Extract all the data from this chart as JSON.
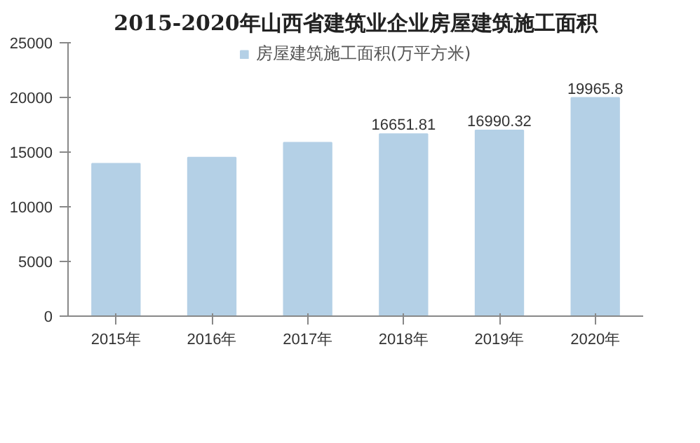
{
  "chart_data": {
    "type": "bar",
    "title": "2015-2020年山西省建筑业企业房屋建筑施工面积",
    "categories": [
      "2015年",
      "2016年",
      "2017年",
      "2018年",
      "2019年",
      "2020年"
    ],
    "series": [
      {
        "name": "房屋建筑施工面积(万平方米)",
        "color": "#b4d0e6",
        "values": [
          13940,
          14500,
          15860,
          16651.81,
          16990.32,
          19965.8
        ],
        "value_labels": [
          null,
          null,
          null,
          "16651.81",
          "16990.32",
          "19965.8"
        ]
      }
    ],
    "ylim": [
      0,
      25000
    ],
    "yticks": [
      0,
      5000,
      10000,
      15000,
      20000,
      25000
    ],
    "grid": false,
    "legend": "top"
  }
}
